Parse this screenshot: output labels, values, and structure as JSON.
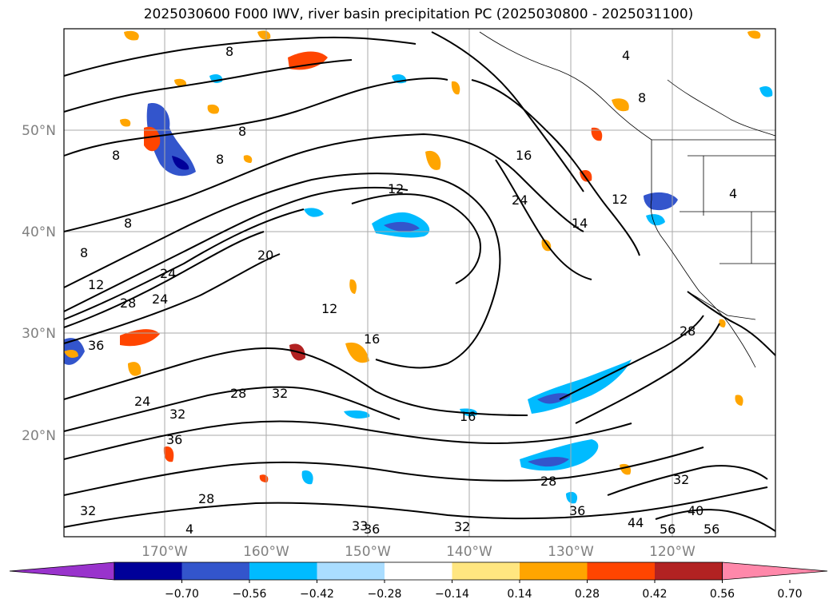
{
  "title": "2025030600 F000 IWV, river basin precipitation PC (2025030800 - 2025031100)",
  "map": {
    "lat_labels": [
      "50°N",
      "40°N",
      "30°N",
      "20°N"
    ],
    "lon_labels": [
      "170°W",
      "160°W",
      "150°W",
      "140°W",
      "130°W",
      "120°W"
    ],
    "contour_labels": [
      "8",
      "8",
      "8",
      "8",
      "8",
      "8",
      "12",
      "12",
      "12",
      "12",
      "16",
      "16",
      "16",
      "20",
      "24",
      "24",
      "24",
      "24",
      "28",
      "28",
      "28",
      "28",
      "32",
      "32",
      "32",
      "32",
      "32",
      "36",
      "36",
      "36",
      "36",
      "40",
      "44",
      "56",
      "56",
      "4",
      "4",
      "4",
      "14",
      "33",
      "8",
      "28"
    ]
  },
  "colorbar": {
    "ticks": [
      "−0.70",
      "−0.56",
      "−0.42",
      "−0.28",
      "−0.14",
      "0.14",
      "0.28",
      "0.42",
      "0.56",
      "0.70"
    ],
    "colors": [
      "#9933cc",
      "#000099",
      "#3355cc",
      "#00bbff",
      "#aaddff",
      "#ffffff",
      "#ffe680",
      "#ffa500",
      "#ff4500",
      "#b22222",
      "#ff88aa"
    ]
  }
}
